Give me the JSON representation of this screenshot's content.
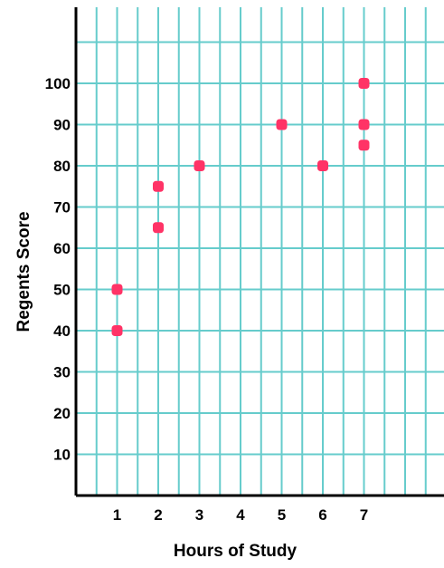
{
  "chart_data": {
    "type": "scatter",
    "title": "",
    "xlabel": "Hours of Study",
    "ylabel": "Regents Score",
    "xlim": [
      0,
      8.2
    ],
    "ylim": [
      0,
      112
    ],
    "x_ticks": [
      1,
      2,
      3,
      4,
      5,
      6,
      7
    ],
    "x_tick_labels": [
      "1",
      "2",
      "3",
      "4",
      "5",
      "6",
      "7"
    ],
    "y_ticks": [
      10,
      20,
      30,
      40,
      50,
      60,
      70,
      80,
      90,
      100
    ],
    "y_tick_labels": [
      "10",
      "20",
      "30",
      "40",
      "50",
      "60",
      "70",
      "80",
      "90",
      "100"
    ],
    "grid": true,
    "legend": "none",
    "series": [
      {
        "x": [
          1,
          1,
          2,
          2,
          3,
          5,
          6,
          7,
          7,
          7
        ],
        "y": [
          50,
          40,
          75,
          65,
          80,
          90,
          80,
          100,
          90,
          85
        ]
      }
    ],
    "colors": {
      "grid": "#66cccc",
      "axis": "#000000",
      "point": "#ff3366",
      "text": "#000000"
    }
  }
}
